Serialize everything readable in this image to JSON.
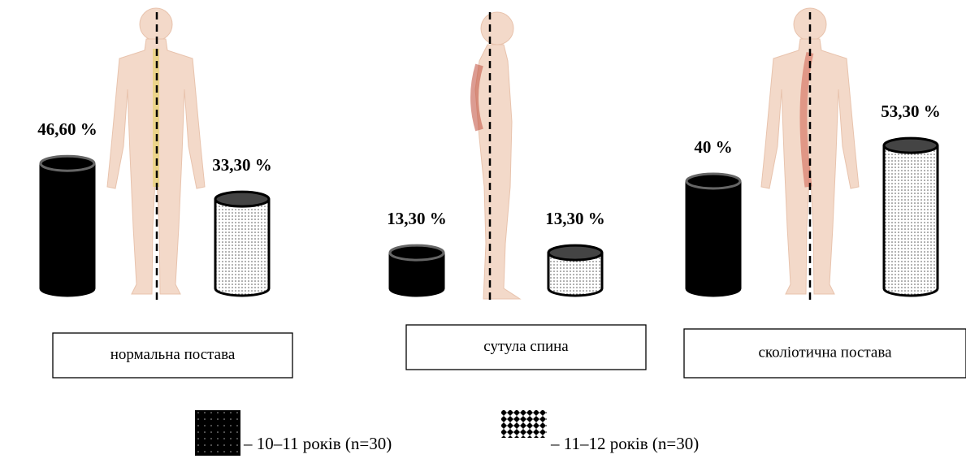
{
  "chart_data": {
    "type": "bar",
    "categories": [
      "нормальна постава",
      "сутула спина",
      "сколіотична постава"
    ],
    "series": [
      {
        "name": "– 10–11 років (n=30)",
        "color": "#000000",
        "values": [
          46.6,
          13.3,
          40
        ],
        "value_labels": [
          "46,60 %",
          "13,30 %",
          "40 %"
        ]
      },
      {
        "name": "– 11–12 років (n=30)",
        "color": "#ffffff",
        "values": [
          33.3,
          13.3,
          53.3
        ],
        "value_labels": [
          "33,30 %",
          "13,30 %",
          "53,30 %"
        ]
      }
    ]
  }
}
